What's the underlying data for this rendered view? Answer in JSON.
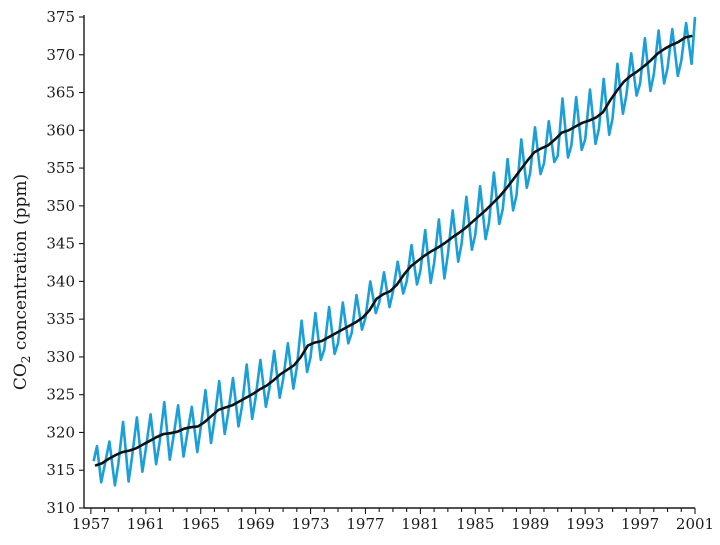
{
  "chart_data": {
    "type": "line",
    "ylabel": {
      "prefix": "CO",
      "subscript": "2",
      "suffix": " concentration (ppm)"
    },
    "xlabel": "",
    "title": "",
    "xlim": [
      1956.5,
      2001
    ],
    "ylim": [
      310,
      375
    ],
    "x_ticks": [
      1957,
      1961,
      1965,
      1969,
      1973,
      1977,
      1981,
      1985,
      1989,
      1993,
      1997,
      2001
    ],
    "x_minor_ticks": [
      1958,
      1959,
      1960,
      1962,
      1963,
      1964,
      1966,
      1967,
      1968,
      1970,
      1971,
      1972,
      1974,
      1975,
      1976,
      1978,
      1979,
      1980,
      1982,
      1983,
      1984,
      1986,
      1987,
      1988,
      1990,
      1991,
      1992,
      1994,
      1995,
      1996,
      1998,
      1999,
      2000
    ],
    "y_ticks": [
      310,
      315,
      320,
      325,
      330,
      335,
      340,
      345,
      350,
      355,
      360,
      365,
      370,
      375
    ],
    "grid": false,
    "legend": "none",
    "colors": {
      "seasonal": "#1a9fd9",
      "trend": "#111111",
      "axis": "#1a1a1a"
    },
    "series": [
      {
        "key": "seasonal",
        "x": [
          1957.2,
          1957.45,
          1957.75,
          1958.0,
          1958.35,
          1958.75,
          1959.0,
          1959.35,
          1959.75,
          1960.0,
          1960.35,
          1960.75,
          1961.0,
          1961.35,
          1961.75,
          1962.0,
          1962.35,
          1962.75,
          1963.0,
          1963.35,
          1963.75,
          1964.0,
          1964.35,
          1964.75,
          1965.0,
          1965.35,
          1965.75,
          1966.0,
          1966.35,
          1966.75,
          1967.0,
          1967.35,
          1967.75,
          1968.0,
          1968.35,
          1968.75,
          1969.0,
          1969.35,
          1969.75,
          1970.0,
          1970.35,
          1970.75,
          1971.0,
          1971.35,
          1971.75,
          1972.0,
          1972.35,
          1972.75,
          1973.0,
          1973.35,
          1973.75,
          1974.0,
          1974.35,
          1974.75,
          1975.0,
          1975.35,
          1975.75,
          1976.0,
          1976.35,
          1976.75,
          1977.0,
          1977.35,
          1977.75,
          1978.0,
          1978.35,
          1978.75,
          1979.0,
          1979.35,
          1979.75,
          1980.0,
          1980.35,
          1980.75,
          1981.0,
          1981.35,
          1981.75,
          1982.0,
          1982.35,
          1982.75,
          1983.0,
          1983.35,
          1983.75,
          1984.0,
          1984.35,
          1984.75,
          1985.0,
          1985.35,
          1985.75,
          1986.0,
          1986.35,
          1986.75,
          1987.0,
          1987.35,
          1987.75,
          1988.0,
          1988.35,
          1988.75,
          1989.0,
          1989.35,
          1989.75,
          1990.0,
          1990.35,
          1990.75,
          1991.0,
          1991.35,
          1991.75,
          1992.0,
          1992.35,
          1992.75,
          1993.0,
          1993.35,
          1993.75,
          1994.0,
          1994.35,
          1994.75,
          1995.0,
          1995.35,
          1995.75,
          1996.0,
          1996.35,
          1996.75,
          1997.0,
          1997.35,
          1997.75,
          1998.0,
          1998.35,
          1998.75,
          1999.0,
          1999.35,
          1999.75,
          2000.0,
          2000.35,
          2000.75,
          2001.0
        ],
        "y": [
          316.2,
          318.2,
          313.4,
          315.6,
          318.8,
          313.0,
          315.8,
          321.4,
          313.5,
          316.8,
          322.0,
          314.8,
          317.8,
          322.4,
          315.8,
          318.6,
          324.0,
          316.4,
          319.2,
          323.6,
          316.8,
          319.6,
          323.4,
          317.4,
          320.6,
          325.6,
          318.6,
          321.6,
          326.8,
          319.8,
          322.6,
          327.2,
          320.8,
          323.4,
          329.0,
          321.8,
          324.6,
          329.6,
          323.4,
          325.8,
          330.8,
          324.6,
          327.0,
          331.8,
          325.8,
          328.6,
          334.8,
          328.0,
          330.0,
          335.8,
          329.6,
          331.0,
          336.6,
          330.4,
          331.8,
          337.2,
          331.8,
          333.2,
          338.2,
          333.6,
          335.2,
          340.0,
          335.8,
          337.2,
          341.2,
          336.6,
          338.6,
          342.6,
          338.4,
          340.0,
          344.8,
          339.6,
          341.4,
          346.8,
          339.8,
          342.4,
          348.2,
          340.4,
          343.6,
          349.4,
          342.6,
          345.0,
          351.2,
          344.2,
          346.2,
          352.6,
          345.6,
          347.8,
          354.4,
          347.6,
          349.6,
          356.2,
          349.4,
          351.4,
          358.8,
          352.4,
          354.4,
          360.4,
          354.2,
          355.6,
          361.2,
          355.8,
          356.6,
          364.2,
          356.4,
          358.0,
          364.4,
          357.4,
          358.8,
          365.4,
          358.2,
          360.2,
          366.8,
          359.4,
          361.6,
          368.8,
          362.2,
          364.6,
          370.2,
          364.6,
          366.2,
          372.2,
          365.2,
          367.4,
          373.2,
          366.2,
          368.2,
          373.4,
          367.2,
          369.2,
          374.2,
          368.8,
          375.0
        ]
      },
      {
        "key": "trend",
        "x": [
          1957.3,
          1957.8,
          1958.3,
          1958.8,
          1959.3,
          1959.8,
          1960.3,
          1960.8,
          1961.3,
          1961.8,
          1962.3,
          1962.8,
          1963.3,
          1963.8,
          1964.3,
          1964.8,
          1965.3,
          1965.8,
          1966.3,
          1966.8,
          1967.3,
          1967.8,
          1968.3,
          1968.8,
          1969.3,
          1969.8,
          1970.3,
          1970.8,
          1971.3,
          1971.8,
          1972.3,
          1972.8,
          1973.3,
          1973.8,
          1974.3,
          1974.8,
          1975.3,
          1975.8,
          1976.3,
          1976.8,
          1977.3,
          1977.8,
          1978.3,
          1978.8,
          1979.3,
          1979.8,
          1980.3,
          1980.8,
          1981.3,
          1981.8,
          1982.3,
          1982.8,
          1983.3,
          1983.8,
          1984.3,
          1984.8,
          1985.3,
          1985.8,
          1986.3,
          1986.8,
          1987.3,
          1987.8,
          1988.3,
          1988.8,
          1989.3,
          1989.8,
          1990.3,
          1990.8,
          1991.3,
          1991.8,
          1992.3,
          1992.8,
          1993.3,
          1993.8,
          1994.3,
          1994.8,
          1995.3,
          1995.8,
          1996.3,
          1996.8,
          1997.3,
          1997.8,
          1998.3,
          1998.8,
          1999.3,
          1999.8,
          2000.3,
          2000.8
        ],
        "y": [
          315.6,
          315.9,
          316.5,
          317.0,
          317.4,
          317.6,
          317.9,
          318.4,
          318.9,
          319.4,
          319.8,
          319.9,
          320.1,
          320.5,
          320.7,
          320.8,
          321.4,
          322.2,
          323.0,
          323.3,
          323.6,
          324.1,
          324.6,
          325.1,
          325.7,
          326.2,
          326.9,
          327.7,
          328.3,
          328.9,
          330.0,
          331.5,
          331.9,
          332.1,
          332.6,
          333.1,
          333.6,
          334.1,
          334.6,
          335.2,
          336.2,
          337.7,
          338.3,
          338.7,
          339.6,
          340.9,
          342.0,
          342.7,
          343.4,
          344.0,
          344.5,
          345.1,
          345.8,
          346.4,
          347.1,
          347.9,
          348.7,
          349.5,
          350.4,
          351.3,
          352.4,
          353.6,
          354.8,
          356.0,
          357.1,
          357.6,
          358.0,
          358.8,
          359.7,
          360.0,
          360.5,
          361.0,
          361.3,
          361.7,
          362.4,
          363.9,
          365.2,
          366.4,
          367.2,
          367.8,
          368.5,
          369.3,
          370.2,
          370.8,
          371.3,
          371.7,
          372.3,
          372.5
        ]
      }
    ]
  }
}
